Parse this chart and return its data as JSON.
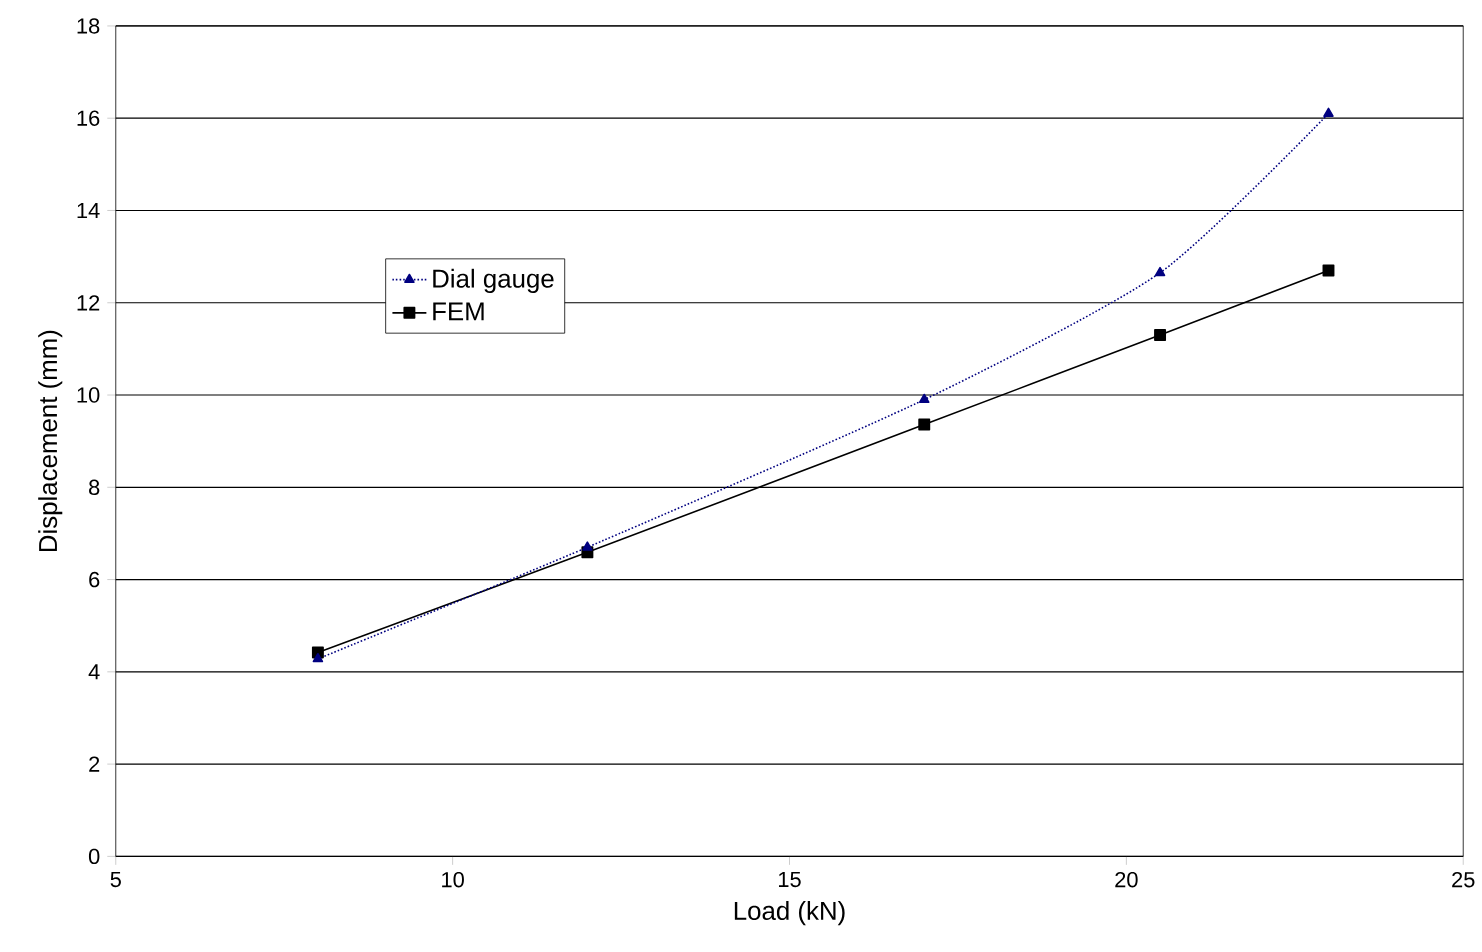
{
  "chart_data": {
    "type": "line",
    "xlabel": "Load (kN)",
    "ylabel": "Displacement (mm)",
    "x": [
      8,
      12,
      17,
      20.5,
      23
    ],
    "series": [
      {
        "name": "Dial gauge",
        "color": "#000080",
        "values": [
          4.28,
          6.7,
          9.9,
          12.65,
          16.1
        ],
        "marker": "triangle",
        "line_style": "dotted"
      },
      {
        "name": "FEM",
        "color": "#000000",
        "values": [
          4.42,
          6.59,
          9.36,
          11.3,
          12.7
        ],
        "marker": "square",
        "line_style": "solid"
      }
    ],
    "xlim": [
      5,
      25
    ],
    "xticks": [
      5,
      10,
      15,
      20,
      25
    ],
    "ylim": [
      0,
      18
    ],
    "yticks": [
      0,
      2,
      4,
      6,
      8,
      10,
      12,
      14,
      16,
      18
    ],
    "grid": "y",
    "legend": "top left"
  }
}
